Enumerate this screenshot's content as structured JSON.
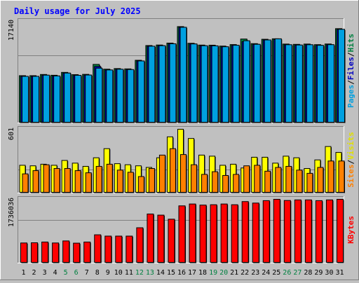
{
  "chart_data": {
    "type": "bar",
    "title": "Daily usage for July 2025",
    "categories": [
      "1",
      "2",
      "3",
      "4",
      "5",
      "6",
      "7",
      "8",
      "9",
      "10",
      "11",
      "12",
      "13",
      "14",
      "15",
      "16",
      "17",
      "18",
      "19",
      "20",
      "21",
      "22",
      "23",
      "24",
      "25",
      "26",
      "27",
      "28",
      "29",
      "30",
      "31"
    ],
    "weekend_days": [
      "5",
      "6",
      "12",
      "13",
      "19",
      "20",
      "26",
      "27"
    ],
    "panels": [
      {
        "id": "hits-files-pages",
        "ytick_label": "17140",
        "ylim": [
          0,
          17140
        ],
        "side_labels": [
          {
            "text": "Pages",
            "color": "#00a0e0"
          },
          {
            "text": "Files",
            "color": "#0000c0"
          },
          {
            "text": "Hits",
            "color": "#008040"
          }
        ],
        "series": [
          {
            "name": "Hits",
            "color": "#008040",
            "values": [
              8040,
              8040,
              8240,
              8110,
              8590,
              8210,
              8260,
              9930,
              9130,
              9230,
              9180,
              10620,
              13090,
              13180,
              13500,
              16260,
              13470,
              13170,
              13150,
              13000,
              13250,
              14180,
              13410,
              14140,
              14220,
              13340,
              13290,
              13340,
              13240,
              13350,
              15920
            ]
          },
          {
            "name": "Files",
            "color": "#0000c0",
            "values": [
              7920,
              7920,
              8120,
              7990,
              8470,
              8090,
              8140,
              9580,
              8990,
              9110,
              9060,
              10500,
              12970,
              13060,
              13380,
              16140,
              13350,
              13050,
              13030,
              12880,
              13130,
              13740,
              13290,
              14020,
              14100,
              13220,
              13170,
              13220,
              13120,
              13230,
              15800
            ]
          },
          {
            "name": "Pages",
            "color": "#00a0e0",
            "values": [
              7930,
              7930,
              8130,
              8000,
              8480,
              8100,
              8150,
              9300,
              9000,
              9120,
              9070,
              10510,
              12980,
              13070,
              13390,
              16150,
              13360,
              13060,
              13040,
              12890,
              13140,
              13900,
              13300,
              14030,
              14220,
              13230,
              13180,
              13230,
              13130,
              13240,
              15810
            ]
          }
        ]
      },
      {
        "id": "visits-sites",
        "ytick_label": "601",
        "ylim": [
          0,
          601
        ],
        "side_labels": [
          {
            "text": "Sites",
            "color": "#ff8000"
          },
          {
            "text": "Visits",
            "color": "#e0e000"
          }
        ],
        "series": [
          {
            "name": "Visits",
            "color": "#ffff00",
            "values": [
              265,
              260,
              275,
              265,
              310,
              285,
              255,
              335,
              420,
              280,
              270,
              260,
              245,
              335,
              530,
              601,
              515,
              360,
              350,
              265,
              275,
              240,
              340,
              340,
              285,
              350,
              335,
              235,
              315,
              440,
              385
            ]
          },
          {
            "name": "Sites",
            "color": "#ff8000",
            "values": [
              185,
              215,
              270,
              235,
              235,
              215,
              195,
              255,
              275,
              220,
              200,
              160,
              235,
              360,
              420,
              365,
              270,
              180,
              205,
              170,
              180,
              260,
              265,
              210,
              245,
              255,
              220,
              190,
              245,
              305,
              305
            ]
          }
        ]
      },
      {
        "id": "kbytes",
        "ytick_label": "1736036",
        "ylim": [
          0,
          1736036
        ],
        "side_labels": [
          {
            "text": "KBytes",
            "color": "#ff0000"
          }
        ],
        "series": [
          {
            "name": "KBytes",
            "color": "#ff0000",
            "values": [
              560000,
              565000,
              585000,
              560000,
              615000,
              555000,
              585000,
              780000,
              745000,
              745000,
              745000,
              970000,
              1340000,
              1310000,
              1200000,
              1560000,
              1610000,
              1580000,
              1590000,
              1610000,
              1590000,
              1675000,
              1635000,
              1700000,
              1736036,
              1705000,
              1720000,
              1720000,
              1700000,
              1720000,
              1736036
            ]
          }
        ]
      }
    ]
  }
}
